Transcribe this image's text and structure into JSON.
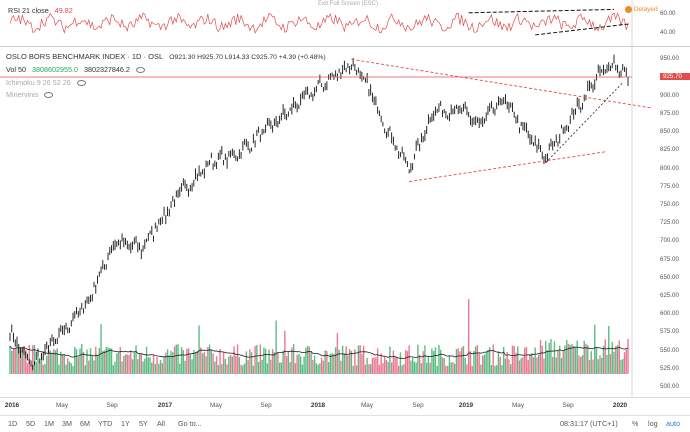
{
  "rsi": {
    "label": "RSI 21 close",
    "value": "49.82",
    "exit_fullscreen": "Exit Full Screen (ESC)",
    "delayed": "Delayed",
    "axis": [
      "60.00",
      "40.00"
    ]
  },
  "main": {
    "title": "OSLO BORS BENCHMARK INDEX · 1D · OSL",
    "ohlc": "O921.30 H925.70 L914.33 C925.70 +4.39 (+0.48%)",
    "vol_label": "Vol 50",
    "vol_value": "3808602955.0",
    "vol_ma": "3802327846.2",
    "ichimoku": "Ichimoku 9 26 52 26",
    "minervini": "Minervinis",
    "last_price": "925.70",
    "price_axis": [
      "950.00",
      "925.00",
      "900.00",
      "875.00",
      "850.00",
      "825.00",
      "800.00",
      "775.00",
      "750.00",
      "725.00",
      "700.00",
      "675.00",
      "650.00",
      "625.00",
      "600.00",
      "575.00",
      "550.00",
      "525.00",
      "500.00"
    ]
  },
  "time_axis": [
    {
      "label": "2016",
      "bold": true
    },
    {
      "label": "May",
      "bold": false
    },
    {
      "label": "Sep",
      "bold": false
    },
    {
      "label": "2017",
      "bold": true
    },
    {
      "label": "May",
      "bold": false
    },
    {
      "label": "Sep",
      "bold": false
    },
    {
      "label": "2018",
      "bold": true
    },
    {
      "label": "May",
      "bold": false
    },
    {
      "label": "Sep",
      "bold": false
    },
    {
      "label": "2019",
      "bold": true
    },
    {
      "label": "May",
      "bold": false
    },
    {
      "label": "Sep",
      "bold": false
    },
    {
      "label": "2020",
      "bold": true
    }
  ],
  "bottom_bar": {
    "ranges": [
      "1D",
      "5D",
      "1M",
      "3M",
      "6M",
      "YTD",
      "1Y",
      "5Y",
      "All"
    ],
    "goto": "Go to...",
    "clock": "08:31:17 (UTC+1)",
    "percent": "%",
    "log": "log",
    "auto": "auto"
  },
  "chart_data": {
    "type": "line",
    "title": "OSLO BORS BENCHMARK INDEX 1D OSL",
    "ylim": [
      500,
      960
    ],
    "anchors": [
      [
        0,
        575
      ],
      [
        12,
        530
      ],
      [
        25,
        560
      ],
      [
        45,
        620
      ],
      [
        60,
        700
      ],
      [
        75,
        690
      ],
      [
        95,
        760
      ],
      [
        115,
        810
      ],
      [
        130,
        820
      ],
      [
        150,
        860
      ],
      [
        170,
        900
      ],
      [
        195,
        945
      ],
      [
        205,
        910
      ],
      [
        215,
        855
      ],
      [
        228,
        800
      ],
      [
        242,
        880
      ],
      [
        258,
        880
      ],
      [
        268,
        860
      ],
      [
        282,
        895
      ],
      [
        296,
        845
      ],
      [
        306,
        815
      ],
      [
        318,
        860
      ],
      [
        335,
        925
      ],
      [
        345,
        945
      ],
      [
        353,
        925
      ]
    ],
    "n_days": 354,
    "colors": {
      "price": "#111111",
      "rsi": "#e24c4c",
      "last": "#e24c4c",
      "vol_up": "#26a65b",
      "vol_down": "#e24c6f",
      "vol_ma": "#222222",
      "trend": "#e24c4c"
    }
  }
}
